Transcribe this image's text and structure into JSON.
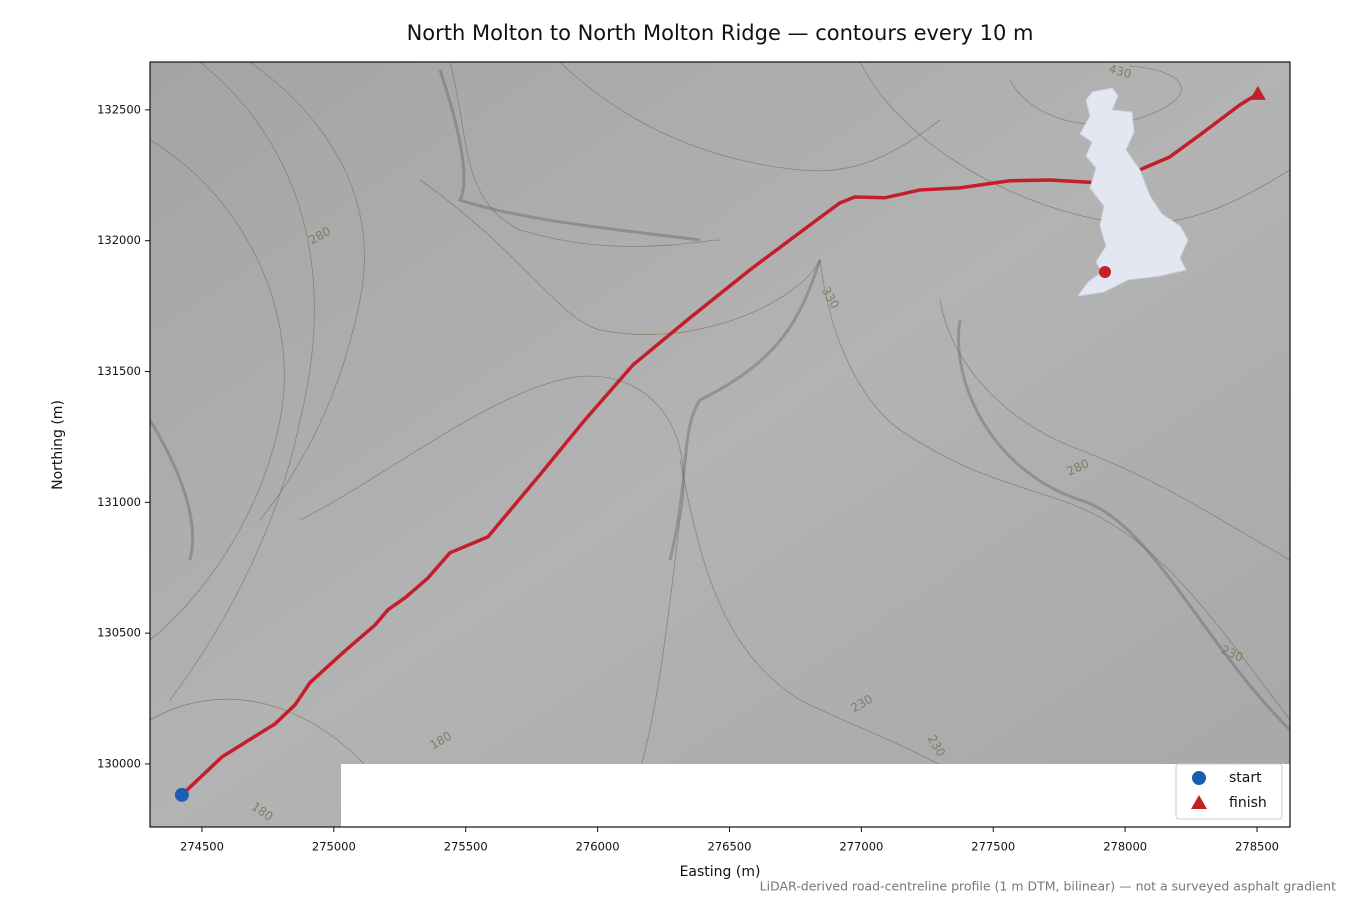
{
  "chart_data": {
    "type": "line",
    "title": "North Molton to North Molton Ridge — contours every 10 m",
    "xlabel": "Easting (m)",
    "ylabel": "Northing (m)",
    "note": "LiDAR-derived road-centreline profile (1 m DTM, bilinear) — not a surveyed asphalt gradient",
    "xlim": [
      274303,
      278625
    ],
    "ylim": [
      129759,
      132683
    ],
    "xticks": [
      274500,
      275000,
      275500,
      276000,
      276500,
      277000,
      277500,
      278000,
      278500
    ],
    "yticks": [
      130000,
      130500,
      131000,
      131500,
      132000,
      132500
    ],
    "route": {
      "color": "#c41e2a",
      "x": [
        274424,
        274576,
        274777,
        274853,
        274909,
        275042,
        275156,
        275205,
        275270,
        275357,
        275440,
        275584,
        275781,
        275952,
        276134,
        276350,
        276577,
        276805,
        276918,
        276975,
        277089,
        277222,
        277373,
        277563,
        277715,
        277904,
        278037,
        278169,
        278283,
        278435,
        278503
      ],
      "y": [
        129882,
        130027,
        130153,
        130226,
        130310,
        130432,
        130531,
        130589,
        130635,
        130711,
        130807,
        130868,
        131105,
        131315,
        131525,
        131705,
        131888,
        132060,
        132144,
        132167,
        132164,
        132194,
        132202,
        132229,
        132232,
        132221,
        132263,
        132320,
        132404,
        132519,
        132561
      ]
    },
    "markers": [
      {
        "name": "start",
        "color": "#1a5fb4",
        "shape": "circle",
        "x": 274424,
        "y": 129882
      },
      {
        "name": "finish",
        "color": "#c41e2a",
        "shape": "triangle",
        "x": 278503,
        "y": 132561
      }
    ],
    "contour_labels": [
      430,
      280,
      330,
      280,
      230,
      230,
      230,
      180,
      180
    ],
    "legend": "lower right"
  }
}
